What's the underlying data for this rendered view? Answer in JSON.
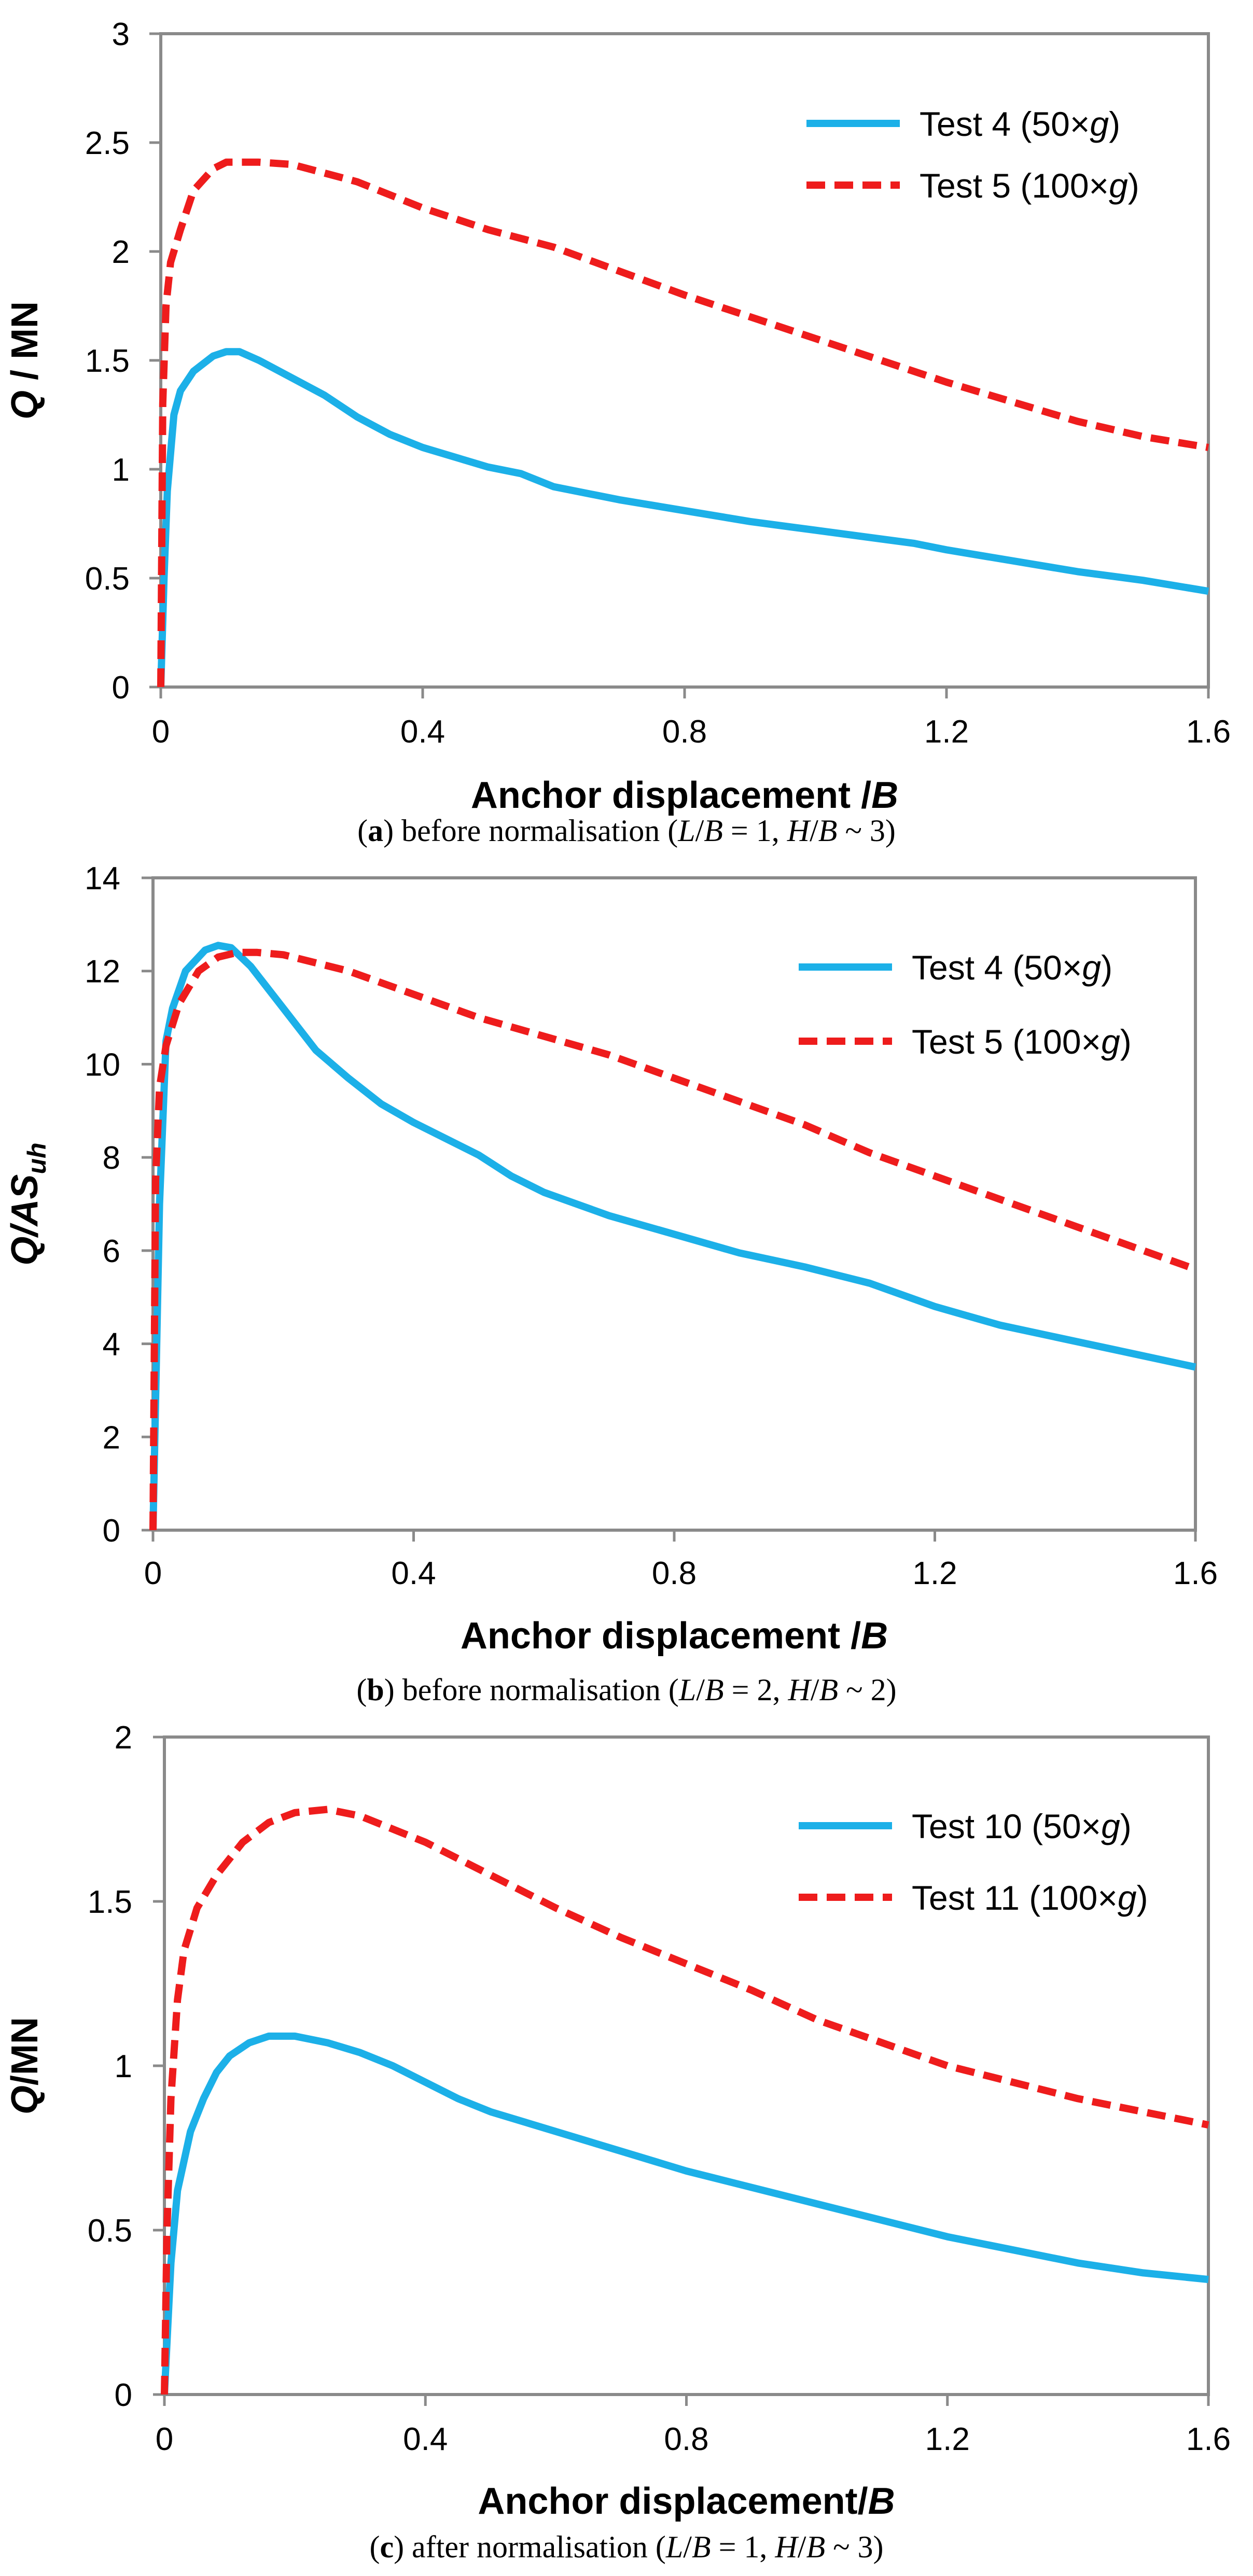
{
  "chart_data": [
    {
      "id": "a",
      "type": "line",
      "ylabel": "Q / MN",
      "xlabel": "Anchor displacement /B",
      "xlim": [
        0,
        1.6
      ],
      "ylim": [
        0,
        3
      ],
      "xticks": [
        "0",
        "0.4",
        "0.8",
        "1.2",
        "1.6"
      ],
      "yticks": [
        "0",
        "0.5",
        "1",
        "1.5",
        "2",
        "2.5",
        "3"
      ],
      "legend_position": "top-right",
      "series": [
        {
          "name": "Test 4 (50×g)",
          "legend_prefix": "Test 4 (50×",
          "legend_italic": "g",
          "legend_suffix": ")",
          "color": "#1CB0E8",
          "dash": "solid",
          "x": [
            0,
            0.005,
            0.01,
            0.02,
            0.03,
            0.05,
            0.08,
            0.1,
            0.12,
            0.15,
            0.2,
            0.25,
            0.3,
            0.35,
            0.4,
            0.5,
            0.55,
            0.6,
            0.7,
            0.8,
            0.9,
            1.0,
            1.1,
            1.15,
            1.2,
            1.3,
            1.4,
            1.5,
            1.6
          ],
          "y": [
            0,
            0.5,
            0.9,
            1.25,
            1.36,
            1.45,
            1.52,
            1.54,
            1.54,
            1.5,
            1.42,
            1.34,
            1.24,
            1.16,
            1.1,
            1.01,
            0.98,
            0.92,
            0.86,
            0.81,
            0.76,
            0.72,
            0.68,
            0.66,
            0.63,
            0.58,
            0.53,
            0.49,
            0.44
          ]
        },
        {
          "name": "Test 5 (100×g)",
          "legend_prefix": "Test 5 (100×",
          "legend_italic": "g",
          "legend_suffix": ")",
          "color": "#EE1C1C",
          "dash": "dashed",
          "x": [
            0,
            0.003,
            0.008,
            0.015,
            0.03,
            0.05,
            0.08,
            0.1,
            0.15,
            0.2,
            0.3,
            0.4,
            0.5,
            0.6,
            0.7,
            0.8,
            0.9,
            1.0,
            1.1,
            1.2,
            1.3,
            1.4,
            1.5,
            1.6
          ],
          "y": [
            0,
            1.3,
            1.75,
            1.95,
            2.1,
            2.28,
            2.38,
            2.41,
            2.41,
            2.4,
            2.32,
            2.2,
            2.1,
            2.02,
            1.91,
            1.8,
            1.7,
            1.6,
            1.5,
            1.4,
            1.31,
            1.22,
            1.15,
            1.1
          ]
        }
      ]
    },
    {
      "id": "b",
      "type": "line",
      "ylabel": "Q/AS_uh",
      "ylabel_main": "Q/AS",
      "ylabel_sub": "uh",
      "xlabel": "Anchor displacement /B",
      "xlim": [
        0,
        1.6
      ],
      "ylim": [
        0,
        14
      ],
      "xticks": [
        "0",
        "0.4",
        "0.8",
        "1.2",
        "1.6"
      ],
      "yticks": [
        "0",
        "2",
        "4",
        "6",
        "8",
        "10",
        "12",
        "14"
      ],
      "legend_position": "top-right",
      "series": [
        {
          "name": "Test 4 (50×g)",
          "legend_prefix": "Test 4 (50×",
          "legend_italic": "g",
          "legend_suffix": ")",
          "color": "#1CB0E8",
          "dash": "solid",
          "x": [
            0,
            0.005,
            0.01,
            0.02,
            0.03,
            0.05,
            0.08,
            0.1,
            0.12,
            0.15,
            0.2,
            0.25,
            0.3,
            0.35,
            0.4,
            0.5,
            0.55,
            0.6,
            0.7,
            0.8,
            0.9,
            1.0,
            1.1,
            1.2,
            1.3,
            1.4,
            1.5,
            1.6
          ],
          "y": [
            0,
            3.5,
            7,
            10.5,
            11.2,
            12,
            12.45,
            12.55,
            12.5,
            12.1,
            11.2,
            10.3,
            9.7,
            9.15,
            8.75,
            8.05,
            7.6,
            7.25,
            6.75,
            6.35,
            5.95,
            5.65,
            5.3,
            4.8,
            4.4,
            4.1,
            3.8,
            3.5
          ]
        },
        {
          "name": "Test 5 (100×g)",
          "legend_prefix": "Test 5 (100×",
          "legend_italic": "g",
          "legend_suffix": ")",
          "color": "#EE1C1C",
          "dash": "dashed",
          "x": [
            0,
            0.004,
            0.01,
            0.02,
            0.04,
            0.07,
            0.1,
            0.13,
            0.16,
            0.2,
            0.3,
            0.4,
            0.5,
            0.6,
            0.7,
            0.8,
            0.9,
            1.0,
            1.1,
            1.2,
            1.3,
            1.4,
            1.5,
            1.6
          ],
          "y": [
            0,
            7.5,
            9.5,
            10.4,
            11.3,
            12.0,
            12.3,
            12.4,
            12.4,
            12.35,
            12.0,
            11.5,
            11.0,
            10.6,
            10.2,
            9.7,
            9.2,
            8.7,
            8.1,
            7.6,
            7.1,
            6.6,
            6.1,
            5.6
          ]
        }
      ]
    },
    {
      "id": "c",
      "type": "line",
      "ylabel": "Q/MN",
      "xlabel": "Anchor displacement/B",
      "xlim": [
        0,
        1.6
      ],
      "ylim": [
        0,
        2
      ],
      "xticks": [
        "0",
        "0.4",
        "0.8",
        "1.2",
        "1.6"
      ],
      "yticks": [
        "0",
        "0.5",
        "1",
        "1.5",
        "2"
      ],
      "legend_position": "top-right",
      "series": [
        {
          "name": "Test 10 (50×g)",
          "legend_prefix": "Test 10 (50×",
          "legend_italic": "g",
          "legend_suffix": ")",
          "color": "#1CB0E8",
          "dash": "solid",
          "x": [
            0,
            0.005,
            0.01,
            0.02,
            0.04,
            0.06,
            0.08,
            0.1,
            0.13,
            0.16,
            0.2,
            0.25,
            0.3,
            0.35,
            0.4,
            0.45,
            0.5,
            0.6,
            0.7,
            0.8,
            0.9,
            1.0,
            1.1,
            1.2,
            1.3,
            1.4,
            1.5,
            1.6
          ],
          "y": [
            0,
            0.2,
            0.4,
            0.62,
            0.8,
            0.9,
            0.98,
            1.03,
            1.07,
            1.09,
            1.09,
            1.07,
            1.04,
            1.0,
            0.95,
            0.9,
            0.86,
            0.8,
            0.74,
            0.68,
            0.63,
            0.58,
            0.53,
            0.48,
            0.44,
            0.4,
            0.37,
            0.35
          ]
        },
        {
          "name": "Test 11 (100×g)",
          "legend_prefix": "Test 11 (100×",
          "legend_italic": "g",
          "legend_suffix": ")",
          "color": "#EE1C1C",
          "dash": "dashed",
          "x": [
            0,
            0.004,
            0.01,
            0.02,
            0.03,
            0.05,
            0.08,
            0.12,
            0.16,
            0.2,
            0.25,
            0.3,
            0.35,
            0.4,
            0.5,
            0.6,
            0.7,
            0.8,
            0.9,
            1.0,
            1.1,
            1.2,
            1.3,
            1.4,
            1.5,
            1.6
          ],
          "y": [
            0,
            0.5,
            0.9,
            1.2,
            1.35,
            1.48,
            1.58,
            1.68,
            1.74,
            1.77,
            1.78,
            1.76,
            1.72,
            1.68,
            1.58,
            1.48,
            1.39,
            1.31,
            1.23,
            1.14,
            1.07,
            1.0,
            0.95,
            0.9,
            0.86,
            0.82
          ]
        }
      ]
    }
  ],
  "captions": [
    {
      "open": "(",
      "label": "a",
      "text": ") before normalisation (",
      "v1": "L",
      "slash1": "/",
      "v2": "B",
      "mid": " = 1, ",
      "v3": "H",
      "slash2": "/",
      "v4": "B",
      "end": " ~ 3)"
    },
    {
      "open": "(",
      "label": "b",
      "text": ") before normalisation (",
      "v1": "L",
      "slash1": "/",
      "v2": "B",
      "mid": " = 2, ",
      "v3": "H",
      "slash2": "/",
      "v4": "B",
      "end": " ~ 2)"
    },
    {
      "open": "(",
      "label": "c",
      "text": ") after normalisation (",
      "v1": "L",
      "slash1": "/",
      "v2": "B",
      "mid": " = 1, ",
      "v3": "H",
      "slash2": "/",
      "v4": "B",
      "end": " ~ 3)"
    }
  ]
}
